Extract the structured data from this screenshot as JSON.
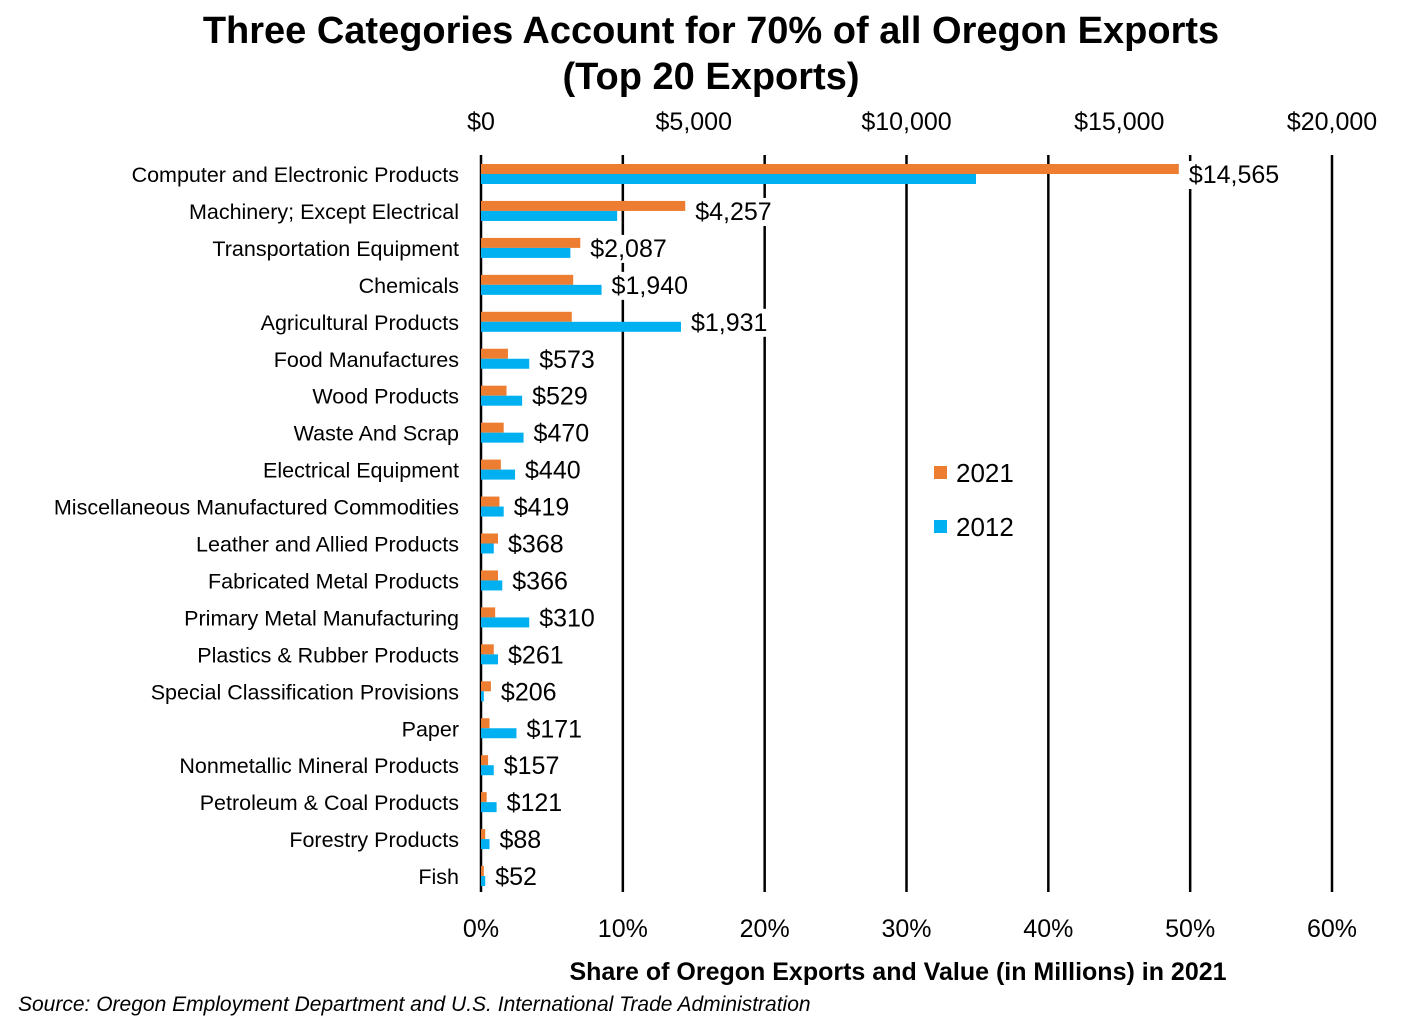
{
  "chart_data": {
    "type": "bar",
    "orientation": "horizontal",
    "title_line1": "Three Categories Account for 70% of all Oregon Exports",
    "title_line2": "(Top 20 Exports)",
    "xlabel": "Share of Oregon Exports and Value (in Millions) in 2021",
    "source": "Source: Oregon Employment Department and U.S. International Trade Administration",
    "categories": [
      "Computer and Electronic Products",
      "Machinery; Except Electrical",
      "Transportation Equipment",
      "Chemicals",
      "Agricultural Products",
      "Food Manufactures",
      "Wood Products",
      "Waste And Scrap",
      "Electrical Equipment",
      "Miscellaneous Manufactured Commodities",
      "Leather and Allied Products",
      "Fabricated Metal Products",
      "Primary Metal Manufacturing",
      "Plastics & Rubber Products",
      "Special Classification Provisions",
      "Paper",
      "Nonmetallic Mineral Products",
      "Petroleum & Coal Products",
      "Forestry Products",
      "Fish"
    ],
    "value_labels": [
      "$14,565",
      "$4,257",
      "$2,087",
      "$1,940",
      "$1,931",
      "$573",
      "$529",
      "$470",
      "$440",
      "$419",
      "$368",
      "$366",
      "$310",
      "$261",
      "$206",
      "$171",
      "$157",
      "$121",
      "$88",
      "$52"
    ],
    "values_2021_millions": [
      14565,
      4257,
      2087,
      1940,
      1931,
      573,
      529,
      470,
      440,
      419,
      368,
      366,
      310,
      261,
      206,
      171,
      157,
      121,
      88,
      52
    ],
    "series": [
      {
        "name": "2021",
        "color": "#ED7D31",
        "values": [
          49.2,
          14.4,
          7.0,
          6.5,
          6.4,
          1.9,
          1.8,
          1.6,
          1.4,
          1.3,
          1.2,
          1.2,
          1.0,
          0.9,
          0.7,
          0.6,
          0.5,
          0.4,
          0.3,
          0.2
        ]
      },
      {
        "name": "2012",
        "color": "#00B0F0",
        "values": [
          34.9,
          9.6,
          6.3,
          8.5,
          14.1,
          3.4,
          2.9,
          3.0,
          2.4,
          1.6,
          0.9,
          1.5,
          3.4,
          1.2,
          0.2,
          2.5,
          0.9,
          1.1,
          0.6,
          0.3
        ]
      }
    ],
    "primary_axis": {
      "unit": "percent",
      "range": [
        0,
        60
      ],
      "ticks": [
        "0%",
        "10%",
        "20%",
        "30%",
        "40%",
        "50%",
        "60%"
      ]
    },
    "secondary_axis": {
      "unit": "millions of dollars",
      "range": [
        0,
        20000
      ],
      "ticks": [
        "$0",
        "$5,000",
        "$10,000",
        "$15,000",
        "$20,000"
      ]
    },
    "grid": "vertical major gridlines",
    "legend_position": "right-middle"
  }
}
